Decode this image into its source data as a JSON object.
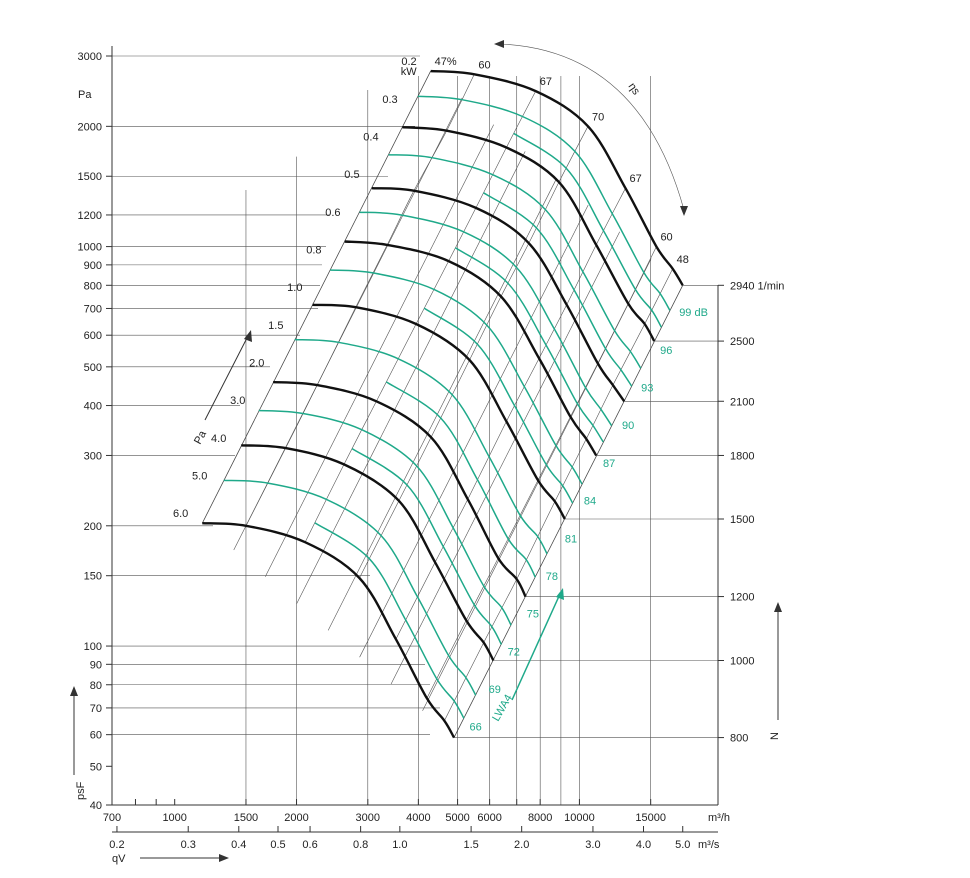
{
  "chart_data": {
    "type": "line",
    "title": "",
    "colors": {
      "speed_curves": "#111111",
      "sound_curves": "#1fa98a",
      "grid": "#444444"
    },
    "y_axis": {
      "label": "Pa",
      "symbol": "psF",
      "scale": "log",
      "range": [
        40,
        3000
      ],
      "ticks": [
        3000,
        2000,
        1500,
        1200,
        1000,
        900,
        800,
        700,
        600,
        500,
        400,
        300,
        200,
        150,
        100,
        90,
        80,
        70,
        60,
        50,
        40
      ]
    },
    "x_axis_m3h": {
      "unit": "m³/h",
      "scale": "log",
      "range": [
        700,
        22000
      ],
      "ticks": [
        700,
        1000,
        1500,
        2000,
        3000,
        4000,
        5000,
        6000,
        8000,
        10000,
        15000
      ]
    },
    "x_axis_m3s": {
      "unit": "m³/s",
      "symbol": "qV",
      "scale": "log",
      "ticks": [
        0.2,
        0.3,
        0.4,
        0.5,
        0.6,
        0.8,
        1.0,
        1.5,
        2.0,
        3.0,
        4.0,
        5.0
      ]
    },
    "speed_axis": {
      "unit": "1/min",
      "symbol": "N",
      "ticks": [
        2940,
        2500,
        2100,
        1800,
        1500,
        1200,
        1000,
        800
      ]
    },
    "power_scale": {
      "unit": "kW",
      "symbol": "Pa",
      "labels": [
        "0.2",
        "0.3",
        "0.4",
        "0.5",
        "0.6",
        "0.8",
        "1.0",
        "1.5",
        "2.0",
        "3.0",
        "4.0",
        "5.0",
        "6.0"
      ]
    },
    "efficiency_scale": {
      "symbol": "ηs",
      "labels": [
        "47%",
        "60",
        "67",
        "70",
        "67",
        "60",
        "48"
      ]
    },
    "sound_scale": {
      "symbol": "LWA4",
      "labels": [
        "66",
        "69",
        "72",
        "75",
        "78",
        "81",
        "84",
        "87",
        "90",
        "93",
        "96",
        "99 dB"
      ]
    },
    "series": [
      {
        "name": "2940",
        "x": [
          4290,
          5500,
          7800,
          10500,
          13000,
          15500,
          17000,
          18000
        ],
        "y": [
          2750,
          2700,
          2450,
          2000,
          1400,
          1000,
          880,
          800
        ]
      },
      {
        "name": "2500",
        "x": [
          3650,
          4700,
          6600,
          8900,
          11000,
          13200,
          14500,
          15300
        ],
        "y": [
          1990,
          1950,
          1770,
          1450,
          1010,
          720,
          640,
          580
        ]
      },
      {
        "name": "2100",
        "x": [
          3070,
          3900,
          5550,
          7500,
          9300,
          11100,
          12100,
          12900
        ],
        "y": [
          1400,
          1380,
          1250,
          1020,
          715,
          510,
          450,
          410
        ]
      },
      {
        "name": "1800",
        "x": [
          2630,
          3350,
          4750,
          6400,
          7950,
          9500,
          10400,
          11000
        ],
        "y": [
          1030,
          1010,
          920,
          750,
          525,
          375,
          330,
          300
        ]
      },
      {
        "name": "1500",
        "x": [
          2190,
          2800,
          3950,
          5350,
          6600,
          7900,
          8700,
          9200
        ],
        "y": [
          715,
          705,
          640,
          520,
          365,
          260,
          230,
          208
        ]
      },
      {
        "name": "1200",
        "x": [
          1750,
          2250,
          3150,
          4300,
          5300,
          6300,
          7000,
          7360
        ],
        "y": [
          458,
          450,
          410,
          333,
          233,
          166,
          147,
          133
        ]
      },
      {
        "name": "1000",
        "x": [
          1460,
          1880,
          2620,
          3580,
          4400,
          5250,
          5800,
          6130
        ],
        "y": [
          318,
          313,
          285,
          231,
          162,
          116,
          102,
          92
        ]
      },
      {
        "name": "800",
        "x": [
          1170,
          1500,
          2100,
          2860,
          3520,
          4200,
          4640,
          4900
        ],
        "y": [
          203,
          200,
          182,
          148,
          104,
          74,
          65,
          59
        ]
      }
    ],
    "legend": "none",
    "grid": true
  }
}
